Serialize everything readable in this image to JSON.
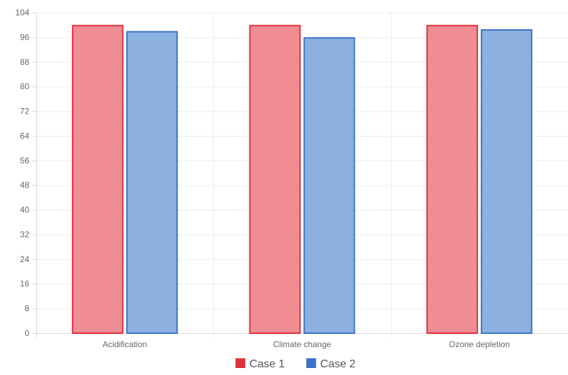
{
  "chart_data": {
    "type": "bar",
    "categories": [
      "Acidification",
      "Climate change",
      "Ozone depletion"
    ],
    "series": [
      {
        "name": "Case 1",
        "values": [
          100,
          100,
          100
        ],
        "color": "#e0323c",
        "fill": "#f08c93"
      },
      {
        "name": "Case 2",
        "values": [
          98,
          96,
          98.6
        ],
        "color": "#3a72c8",
        "fill": "#8cb1e0"
      }
    ],
    "yticks": [
      0,
      8,
      16,
      24,
      32,
      40,
      48,
      56,
      64,
      72,
      80,
      88,
      96,
      104
    ],
    "ylim": [
      0,
      104
    ],
    "title": "",
    "xlabel": "",
    "ylabel": "",
    "grid": true,
    "legend_position": "bottom-center"
  }
}
